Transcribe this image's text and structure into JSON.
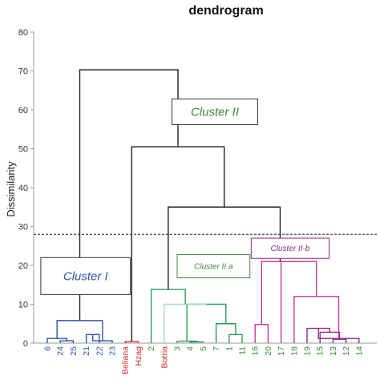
{
  "chart_data": {
    "type": "dendrogram",
    "title": "dendrogram",
    "ylabel": "Dissimilarity",
    "ylim": [
      0,
      80
    ],
    "yticks": [
      0,
      10,
      20,
      30,
      40,
      50,
      60,
      70,
      80
    ],
    "cut_height": 28,
    "leaves": [
      {
        "label": "6",
        "color": "#2f56a4"
      },
      {
        "label": "24",
        "color": "#2f56a4"
      },
      {
        "label": "25",
        "color": "#2f56a4"
      },
      {
        "label": "21",
        "color": "#2f56a4"
      },
      {
        "label": "22",
        "color": "#2f56a4"
      },
      {
        "label": "23",
        "color": "#2f56a4"
      },
      {
        "label": "Beliana",
        "color": "#d62b2b"
      },
      {
        "label": "Hzag",
        "color": "#d62b2b"
      },
      {
        "label": "2",
        "color": "#3f8a3a"
      },
      {
        "label": "Botria",
        "color": "#d62b2b"
      },
      {
        "label": "3",
        "color": "#3f8a3a"
      },
      {
        "label": "4",
        "color": "#3f8a3a"
      },
      {
        "label": "5",
        "color": "#3f8a3a"
      },
      {
        "label": "7",
        "color": "#3f8a3a"
      },
      {
        "label": "1",
        "color": "#3f8a3a"
      },
      {
        "label": "11",
        "color": "#3f8a3a"
      },
      {
        "label": "16",
        "color": "#3f8a3a"
      },
      {
        "label": "20",
        "color": "#3f8a3a"
      },
      {
        "label": "17",
        "color": "#3f8a3a"
      },
      {
        "label": "18",
        "color": "#3f8a3a"
      },
      {
        "label": "19",
        "color": "#3f8a3a"
      },
      {
        "label": "15",
        "color": "#3f8a3a"
      },
      {
        "label": "13",
        "color": "#3f8a3a"
      },
      {
        "label": "12",
        "color": "#3f8a3a"
      },
      {
        "label": "14",
        "color": "#3f8a3a"
      }
    ],
    "merges": [
      {
        "left": 1,
        "right": 2,
        "height": 0.6,
        "color": "#2f56a4"
      },
      {
        "left": 0,
        "right": 25,
        "height": 1.2,
        "color": "#2f56a4"
      },
      {
        "left": 3,
        "right": 4,
        "height": 2.2,
        "color": "#2f56a4"
      },
      {
        "left": 27,
        "right": 5,
        "height": 0.6,
        "color": "#2f56a4"
      },
      {
        "left": 26,
        "right": 28,
        "height": 5.8,
        "color": "#2f56a4"
      },
      {
        "left": 6,
        "right": 7,
        "height": 0.4,
        "color": "#d62b2b"
      },
      {
        "left": 11,
        "right": 12,
        "height": 0.3,
        "color": "#2e9a62"
      },
      {
        "left": 10,
        "right": 31,
        "height": 0.5,
        "color": "#2e9a62"
      },
      {
        "left": 14,
        "right": 15,
        "height": 2.2,
        "color": "#2e9a62"
      },
      {
        "left": 13,
        "right": 33,
        "height": 5.0,
        "color": "#2e9a62"
      },
      {
        "left": 32,
        "right": 34,
        "height": 10.0,
        "color": "#2e9a62"
      },
      {
        "left": 9,
        "right": 35,
        "height": 10.0,
        "color": "#a5d9c0"
      },
      {
        "left": 8,
        "right": 36,
        "height": 13.8,
        "color": "#2e9a62"
      },
      {
        "left": 16,
        "right": 17,
        "height": 4.8,
        "color": "#c3399b"
      },
      {
        "left": 22,
        "right": 23,
        "height": 1.0,
        "color": "#8a2a8a"
      },
      {
        "left": 21,
        "right": 39,
        "height": 2.8,
        "color": "#8a2a8a"
      },
      {
        "left": 20,
        "right": 40,
        "height": 3.8,
        "color": "#8a2a8a"
      },
      {
        "left": 41,
        "right": 24,
        "height": 1.2,
        "color": "#8a2a8a"
      },
      {
        "left": 19,
        "right": 42,
        "height": 12.0,
        "color": "#c3399b"
      },
      {
        "left": 18,
        "right": 43,
        "height": 21.0,
        "color": "#c3399b"
      },
      {
        "left": 38,
        "right": 44,
        "height": 21.0,
        "color": "#c3399b"
      },
      {
        "left": 37,
        "right": 45,
        "height": 35.0,
        "color": "#222222"
      },
      {
        "left": 30,
        "right": 46,
        "height": 50.5,
        "color": "#222222"
      },
      {
        "left": 29,
        "right": 47,
        "height": 70.3,
        "color": "#222222"
      }
    ],
    "annotations": [
      {
        "text": "Cluster I",
        "color": "#2f56a4",
        "size": "large",
        "y_top": 22,
        "y_bottom": 12.5,
        "leaf_from": -0.5,
        "leaf_to": 6.4
      },
      {
        "text": "Cluster II",
        "color": "#3f8a3a",
        "size": "large",
        "y_top": 62.8,
        "y_bottom": 56.2,
        "leaf_from": 9.6,
        "leaf_to": 16.2
      },
      {
        "text": "Cluster II a",
        "color": "#3f8a3a",
        "size": "small",
        "y_top": 22.8,
        "y_bottom": 16.8,
        "leaf_from": 10.0,
        "leaf_to": 15.6
      },
      {
        "text": "Cluster II-b",
        "color": "#8a2a8a",
        "size": "small",
        "y_top": 27,
        "y_bottom": 21.8,
        "leaf_from": 15.7,
        "leaf_to": 21.7
      }
    ]
  }
}
